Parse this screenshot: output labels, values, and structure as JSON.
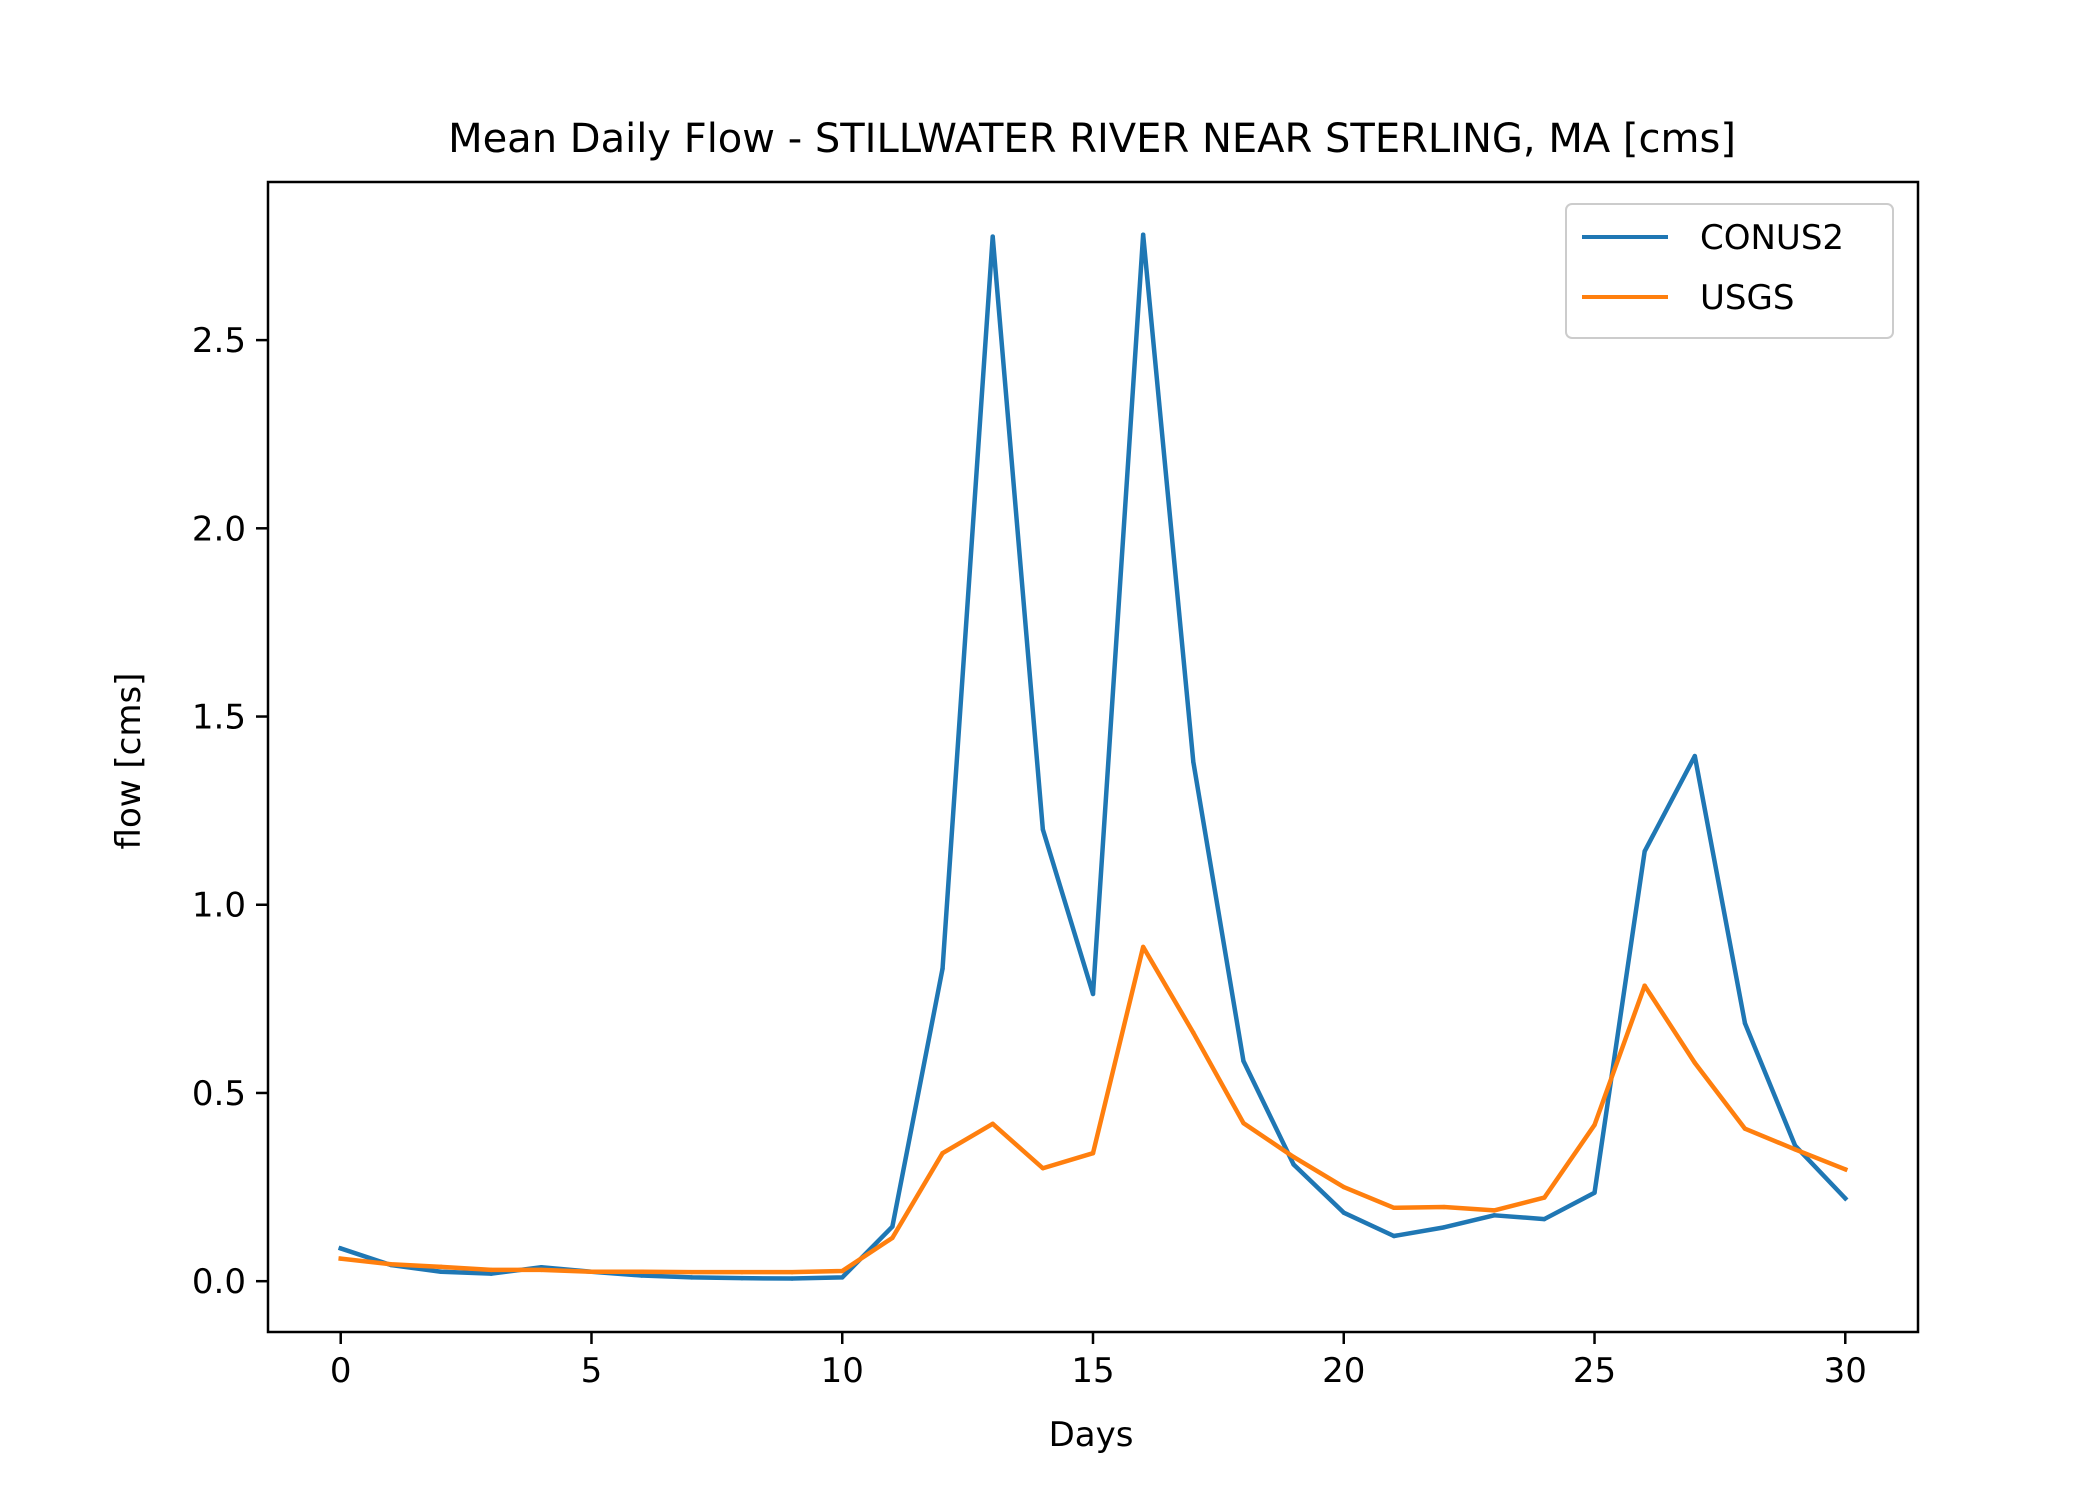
{
  "chart_data": {
    "type": "line",
    "title": "Mean Daily Flow - STILLWATER RIVER NEAR STERLING, MA [cms]",
    "xlabel": "Days",
    "ylabel": "flow [cms]",
    "xlim": [
      -1.45,
      31.45
    ],
    "ylim": [
      -0.135,
      2.92
    ],
    "xticks": [
      0,
      5,
      10,
      15,
      20,
      25,
      30
    ],
    "yticks": [
      0.0,
      0.5,
      1.0,
      1.5,
      2.0,
      2.5
    ],
    "xtick_labels": [
      "0",
      "5",
      "10",
      "15",
      "20",
      "25",
      "30"
    ],
    "ytick_labels": [
      "0.0",
      "0.5",
      "1.0",
      "1.5",
      "2.0",
      "2.5"
    ],
    "grid": false,
    "legend_position": "top-right",
    "x": [
      0,
      1,
      2,
      3,
      4,
      5,
      6,
      7,
      8,
      9,
      10,
      11,
      12,
      13,
      14,
      15,
      16,
      17,
      18,
      19,
      20,
      21,
      22,
      23,
      24,
      25,
      26,
      27,
      28,
      29,
      30
    ],
    "series": [
      {
        "name": "CONUS2",
        "color": "#1f77b4",
        "values": [
          0.087,
          0.043,
          0.025,
          0.02,
          0.037,
          0.025,
          0.015,
          0.01,
          0.008,
          0.007,
          0.01,
          0.145,
          0.83,
          2.775,
          1.2,
          0.763,
          2.78,
          1.38,
          0.585,
          0.31,
          0.182,
          0.12,
          0.143,
          0.175,
          0.165,
          0.235,
          1.142,
          1.395,
          0.685,
          0.36,
          0.22
        ]
      },
      {
        "name": "USGS",
        "color": "#ff7f0e",
        "values": [
          0.06,
          0.045,
          0.038,
          0.03,
          0.03,
          0.025,
          0.025,
          0.024,
          0.024,
          0.024,
          0.027,
          0.115,
          0.34,
          0.418,
          0.3,
          0.34,
          0.888,
          0.66,
          0.42,
          0.33,
          0.25,
          0.195,
          0.197,
          0.188,
          0.222,
          0.415,
          0.785,
          0.58,
          0.405,
          0.35,
          0.297
        ]
      }
    ]
  }
}
